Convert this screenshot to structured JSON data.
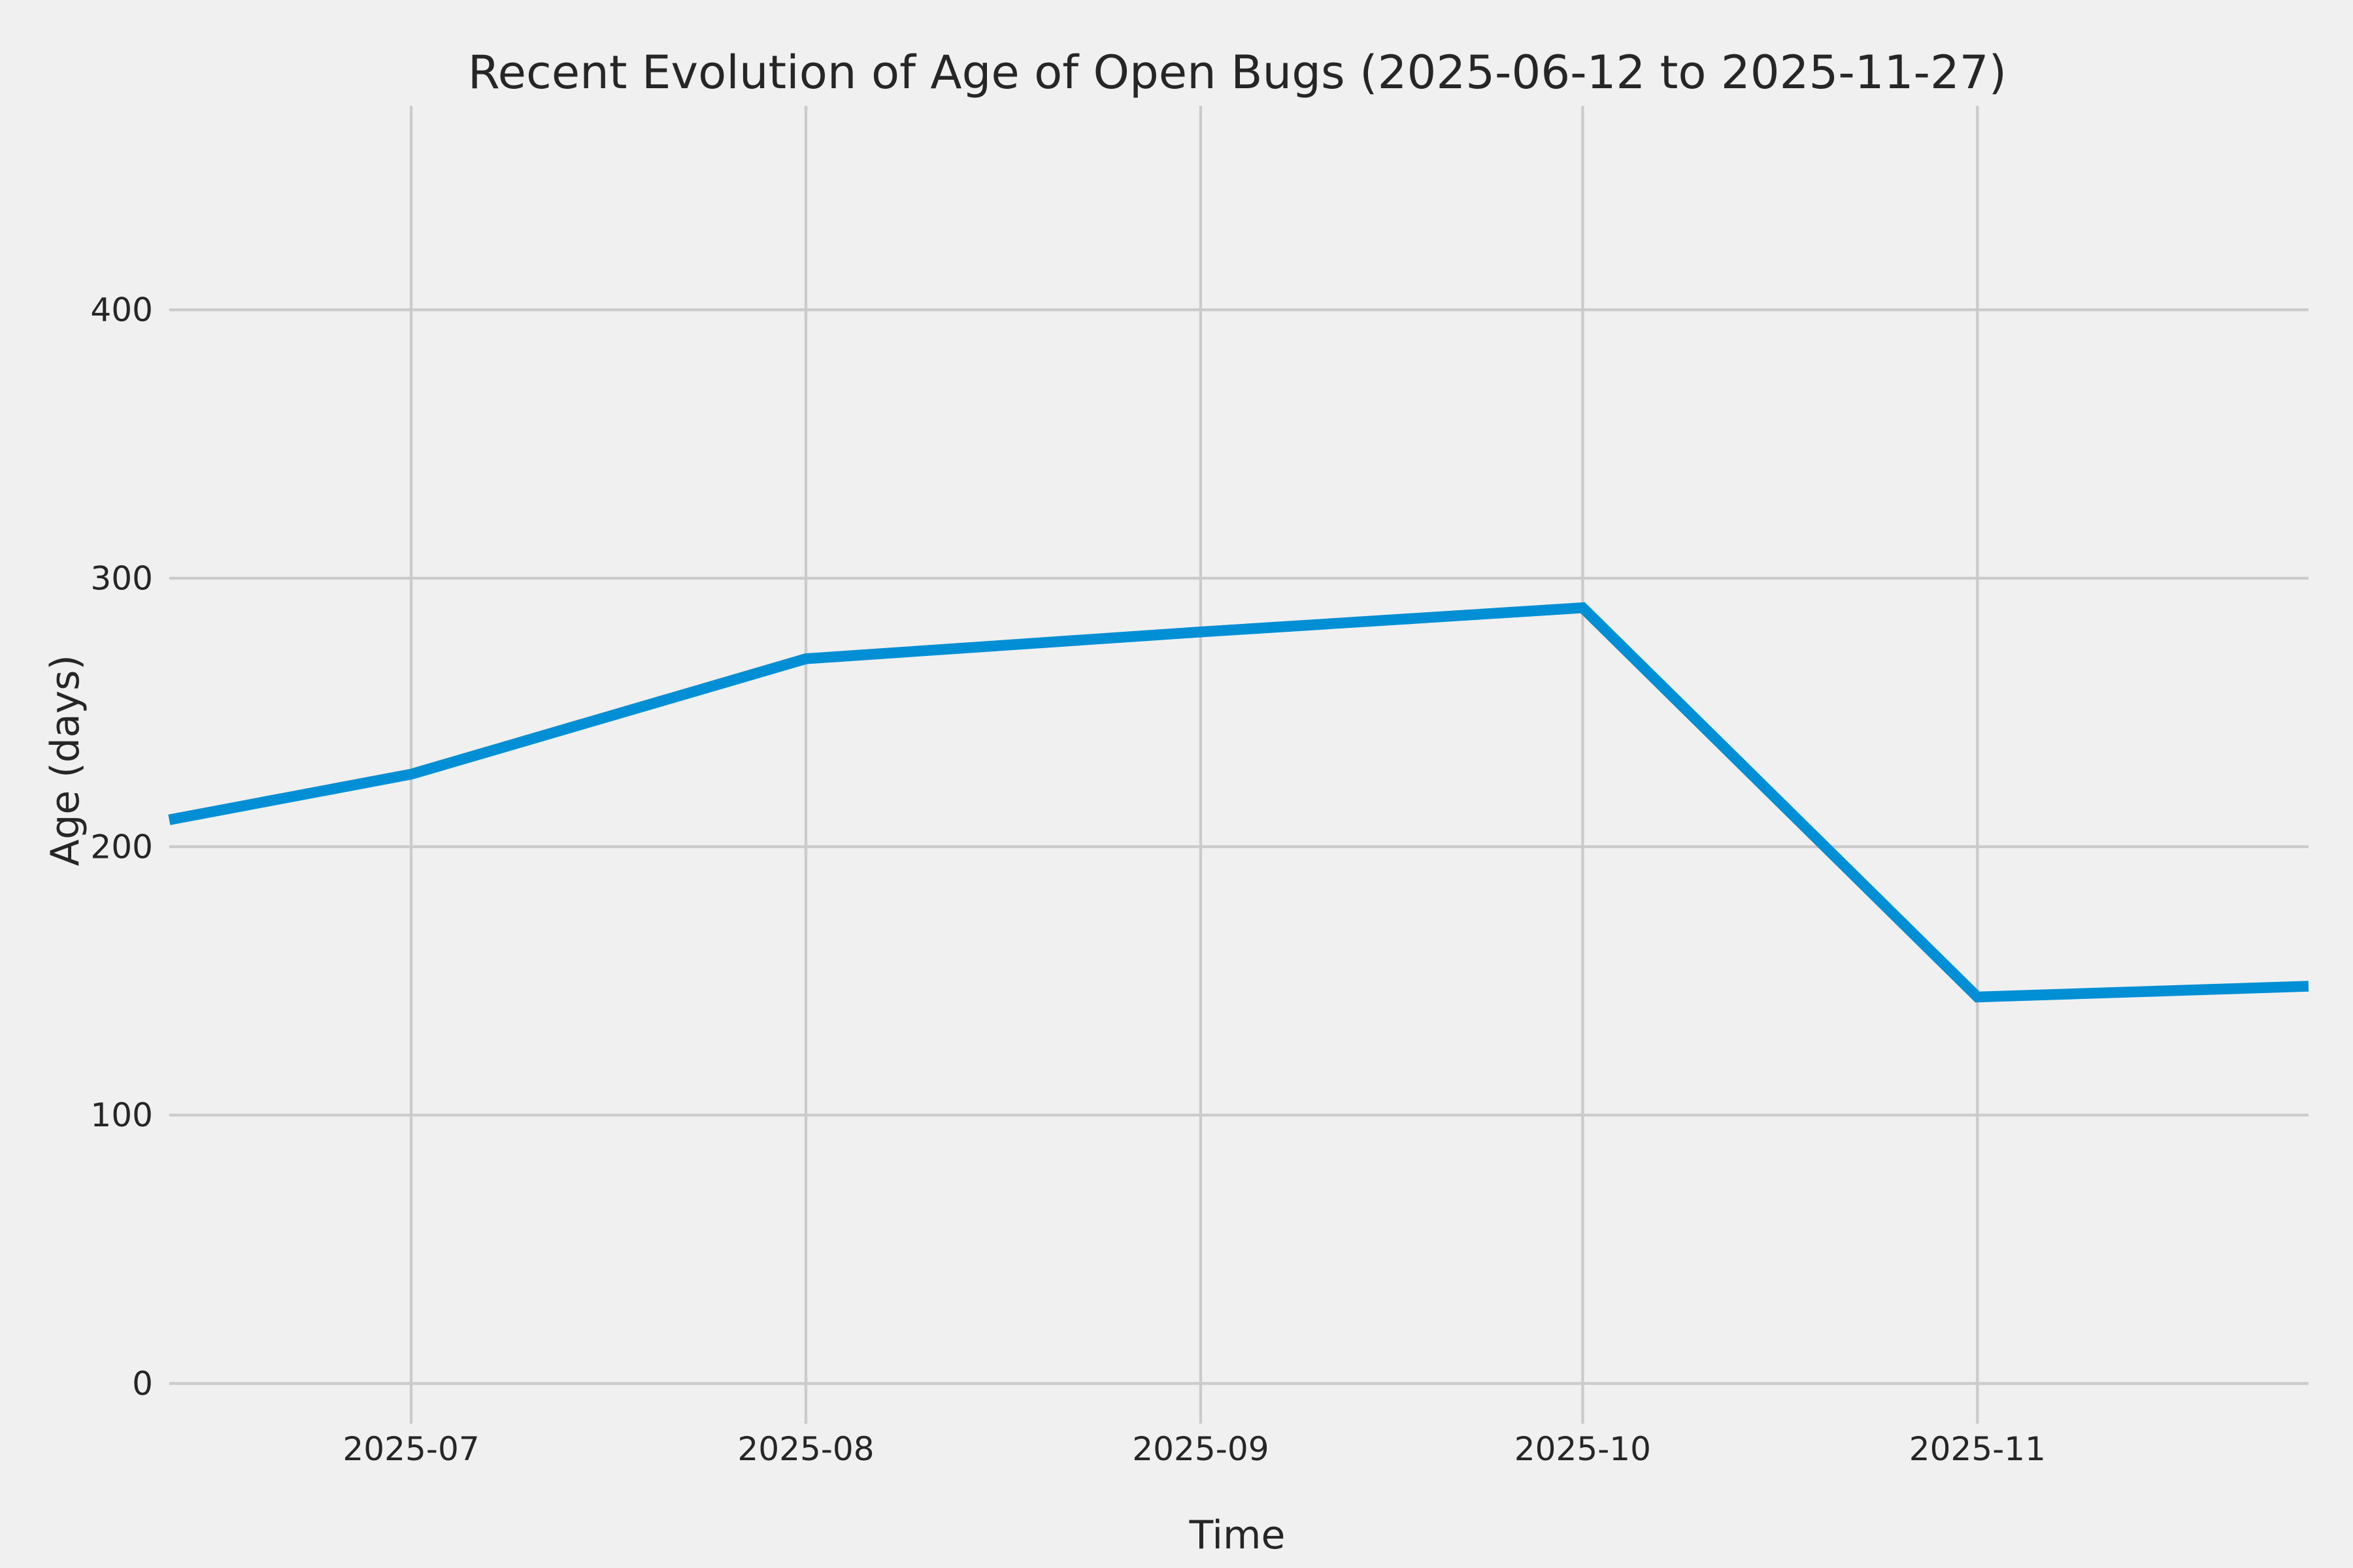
{
  "figure": {
    "background_color": "#f0f0f0",
    "text_color": "#262626"
  },
  "chart_data": {
    "type": "line",
    "title": "Recent Evolution of Age of Open Bugs (2025-06-12 to 2025-11-27)",
    "xlabel": "Time",
    "ylabel": "Age (days)",
    "x_dates": [
      "2025-06-12",
      "2025-07-01",
      "2025-08-01",
      "2025-09-01",
      "2025-10-01",
      "2025-11-01",
      "2025-11-27"
    ],
    "y_values": [
      210,
      227,
      270,
      280,
      289,
      144,
      148
    ],
    "x_days_from_start": [
      0,
      19,
      50,
      81,
      111,
      142,
      168
    ],
    "x_tick_labels": [
      "2025-07",
      "2025-08",
      "2025-09",
      "2025-10",
      "2025-11"
    ],
    "x_tick_days": [
      19,
      50,
      81,
      111,
      142
    ],
    "y_ticks": [
      0,
      100,
      200,
      300,
      400
    ],
    "xlim_days": [
      0,
      168
    ],
    "ylim": [
      -15,
      476
    ],
    "grid": true,
    "legend": false,
    "line_color": "#008fd5",
    "grid_color": "#cbcbcb"
  }
}
